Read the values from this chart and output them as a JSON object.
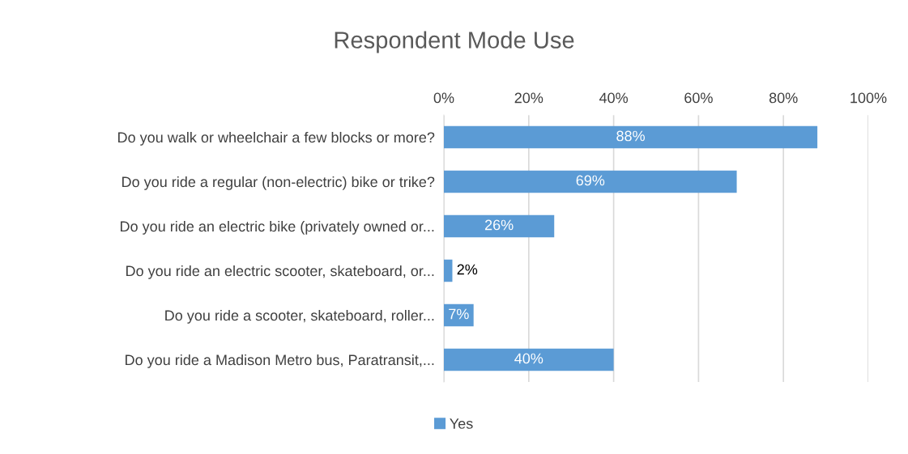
{
  "chart_data": {
    "type": "bar",
    "orientation": "horizontal",
    "title": "Respondent Mode Use",
    "categories": [
      "Do you walk or wheelchair a few blocks or more?",
      "Do you ride a regular (non-electric) bike or trike?",
      "Do you ride an electric bike (privately owned or...",
      "Do you ride an electric scooter, skateboard, or...",
      "Do you ride a scooter, skateboard, roller...",
      "Do you ride a Madison Metro bus, Paratransit,..."
    ],
    "series": [
      {
        "name": "Yes",
        "color": "#5b9bd5",
        "values": [
          88,
          69,
          26,
          2,
          7,
          40
        ],
        "value_labels": [
          "88%",
          "69%",
          "26%",
          "2%",
          "7%",
          "40%"
        ]
      }
    ],
    "xlim": [
      0,
      100
    ],
    "xticks": [
      {
        "value": 0,
        "label": "0%"
      },
      {
        "value": 20,
        "label": "20%"
      },
      {
        "value": 40,
        "label": "40%"
      },
      {
        "value": 60,
        "label": "60%"
      },
      {
        "value": 80,
        "label": "80%"
      },
      {
        "value": 100,
        "label": "100%"
      }
    ],
    "grid": "x",
    "legend": "bottom"
  }
}
